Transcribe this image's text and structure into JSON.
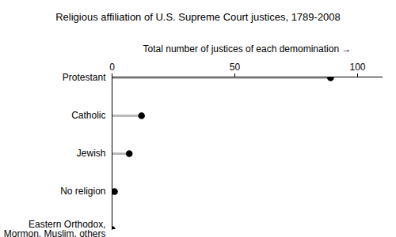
{
  "chart_data": {
    "type": "dot",
    "orientation": "horizontal",
    "title": "Religious affiliation of U.S. Supreme Court justices, 1789-2008",
    "x_label": "Total number of justices of each demomination",
    "categories": [
      "Protestant",
      "Catholic",
      "Jewish",
      "No religion",
      "Eastern Orthodox,\nMormon, Muslim, others"
    ],
    "values": [
      89,
      12,
      7,
      1,
      0
    ],
    "color": "#000000",
    "xlim": [
      0,
      110
    ],
    "xticks": [
      0,
      50,
      100
    ],
    "grid": false
  }
}
